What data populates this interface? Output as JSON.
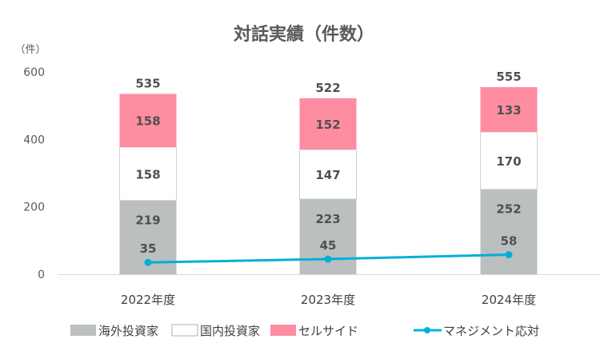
{
  "chart_data": {
    "type": "bar",
    "stacked": true,
    "title": "対話実績（件数）",
    "ylabel": "（件）",
    "ylim": [
      0,
      600
    ],
    "yticks": [
      "0",
      "200",
      "400",
      "600"
    ],
    "grid": false,
    "legend_position": "bottom",
    "categories": [
      "2022年度",
      "2023年度",
      "2024年度"
    ],
    "totals": [
      535,
      522,
      555
    ],
    "series": [
      {
        "name": "海外投資家",
        "values": [
          219,
          223,
          252
        ],
        "color": "#bbbfbf"
      },
      {
        "name": "国内投資家",
        "values": [
          158,
          147,
          170
        ],
        "color": "#ffffff"
      },
      {
        "name": "セルサイド",
        "values": [
          158,
          152,
          133
        ],
        "color": "#ff8da1"
      }
    ],
    "line_series": {
      "name": "マネジメント応対",
      "type": "line",
      "values": [
        35,
        45,
        58
      ],
      "color": "#00b0d8"
    }
  }
}
